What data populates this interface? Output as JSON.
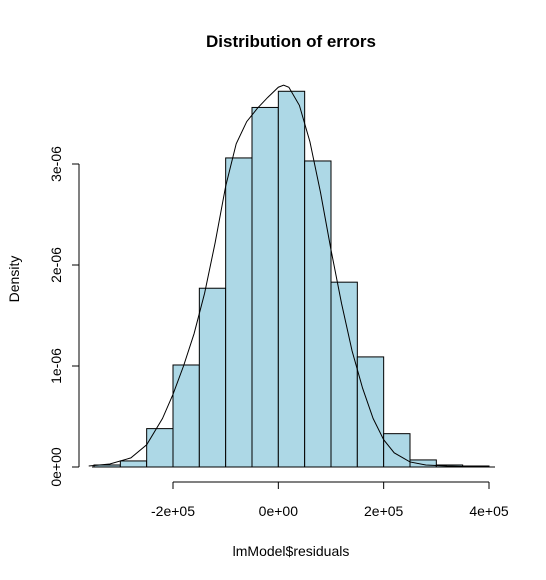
{
  "chart_data": {
    "type": "bar",
    "title": "Distribution of errors",
    "xlabel": "lmModel$residuals",
    "ylabel": "Density",
    "xlim": [
      -400000,
      400000
    ],
    "ylim": [
      0,
      3800000
    ],
    "bin_width": 50000,
    "bins": [
      {
        "x0": -350000,
        "x1": -300000,
        "value": 2e-08
      },
      {
        "x0": -300000,
        "x1": -250000,
        "value": 6e-08
      },
      {
        "x0": -250000,
        "x1": -200000,
        "value": 3.8e-07
      },
      {
        "x0": -200000,
        "x1": -150000,
        "value": 1.01e-06
      },
      {
        "x0": -150000,
        "x1": -100000,
        "value": 1.77e-06
      },
      {
        "x0": -100000,
        "x1": -50000,
        "value": 3.06e-06
      },
      {
        "x0": -50000,
        "x1": 0,
        "value": 3.56e-06
      },
      {
        "x0": 0,
        "x1": 50000,
        "value": 3.72e-06
      },
      {
        "x0": 50000,
        "x1": 100000,
        "value": 3.03e-06
      },
      {
        "x0": 100000,
        "x1": 150000,
        "value": 1.83e-06
      },
      {
        "x0": 150000,
        "x1": 200000,
        "value": 1.09e-06
      },
      {
        "x0": 200000,
        "x1": 250000,
        "value": 3.3e-07
      },
      {
        "x0": 250000,
        "x1": 300000,
        "value": 7e-08
      },
      {
        "x0": 300000,
        "x1": 350000,
        "value": 2e-08
      },
      {
        "x0": 350000,
        "x1": 400000,
        "value": 1e-08
      }
    ],
    "density_curve": {
      "x": [
        -360000,
        -320000,
        -280000,
        -250000,
        -220000,
        -200000,
        -180000,
        -160000,
        -140000,
        -120000,
        -100000,
        -80000,
        -60000,
        -40000,
        -20000,
        0,
        10000,
        20000,
        40000,
        60000,
        80000,
        100000,
        120000,
        140000,
        160000,
        180000,
        200000,
        220000,
        250000,
        280000,
        320000,
        360000,
        400000
      ],
      "y": [
        1e-08,
        3e-08,
        9e-08,
        2.2e-07,
        4.8e-07,
        7.2e-07,
        1e-06,
        1.32e-06,
        1.72e-06,
        2.22e-06,
        2.78e-06,
        3.2e-06,
        3.42e-06,
        3.55e-06,
        3.66e-06,
        3.76e-06,
        3.78e-06,
        3.76e-06,
        3.58e-06,
        3.22e-06,
        2.72e-06,
        2.15e-06,
        1.62e-06,
        1.15e-06,
        7.8e-07,
        4.8e-07,
        2.7e-07,
        1.4e-07,
        5e-08,
        2e-08,
        1e-08,
        5e-09,
        2e-09
      ]
    },
    "x_ticks": [
      {
        "value": -200000,
        "label": "-2e+05"
      },
      {
        "value": 0,
        "label": "0e+00"
      },
      {
        "value": 200000,
        "label": "2e+05"
      },
      {
        "value": 400000,
        "label": "4e+05"
      }
    ],
    "y_ticks": [
      {
        "value": 0,
        "label": "0e+00"
      },
      {
        "value": 1e-06,
        "label": "1e-06"
      },
      {
        "value": 2e-06,
        "label": "2e-06"
      },
      {
        "value": 3e-06,
        "label": "3e-06"
      }
    ],
    "bar_color": "#add8e6",
    "grid": false,
    "legend": "none"
  }
}
